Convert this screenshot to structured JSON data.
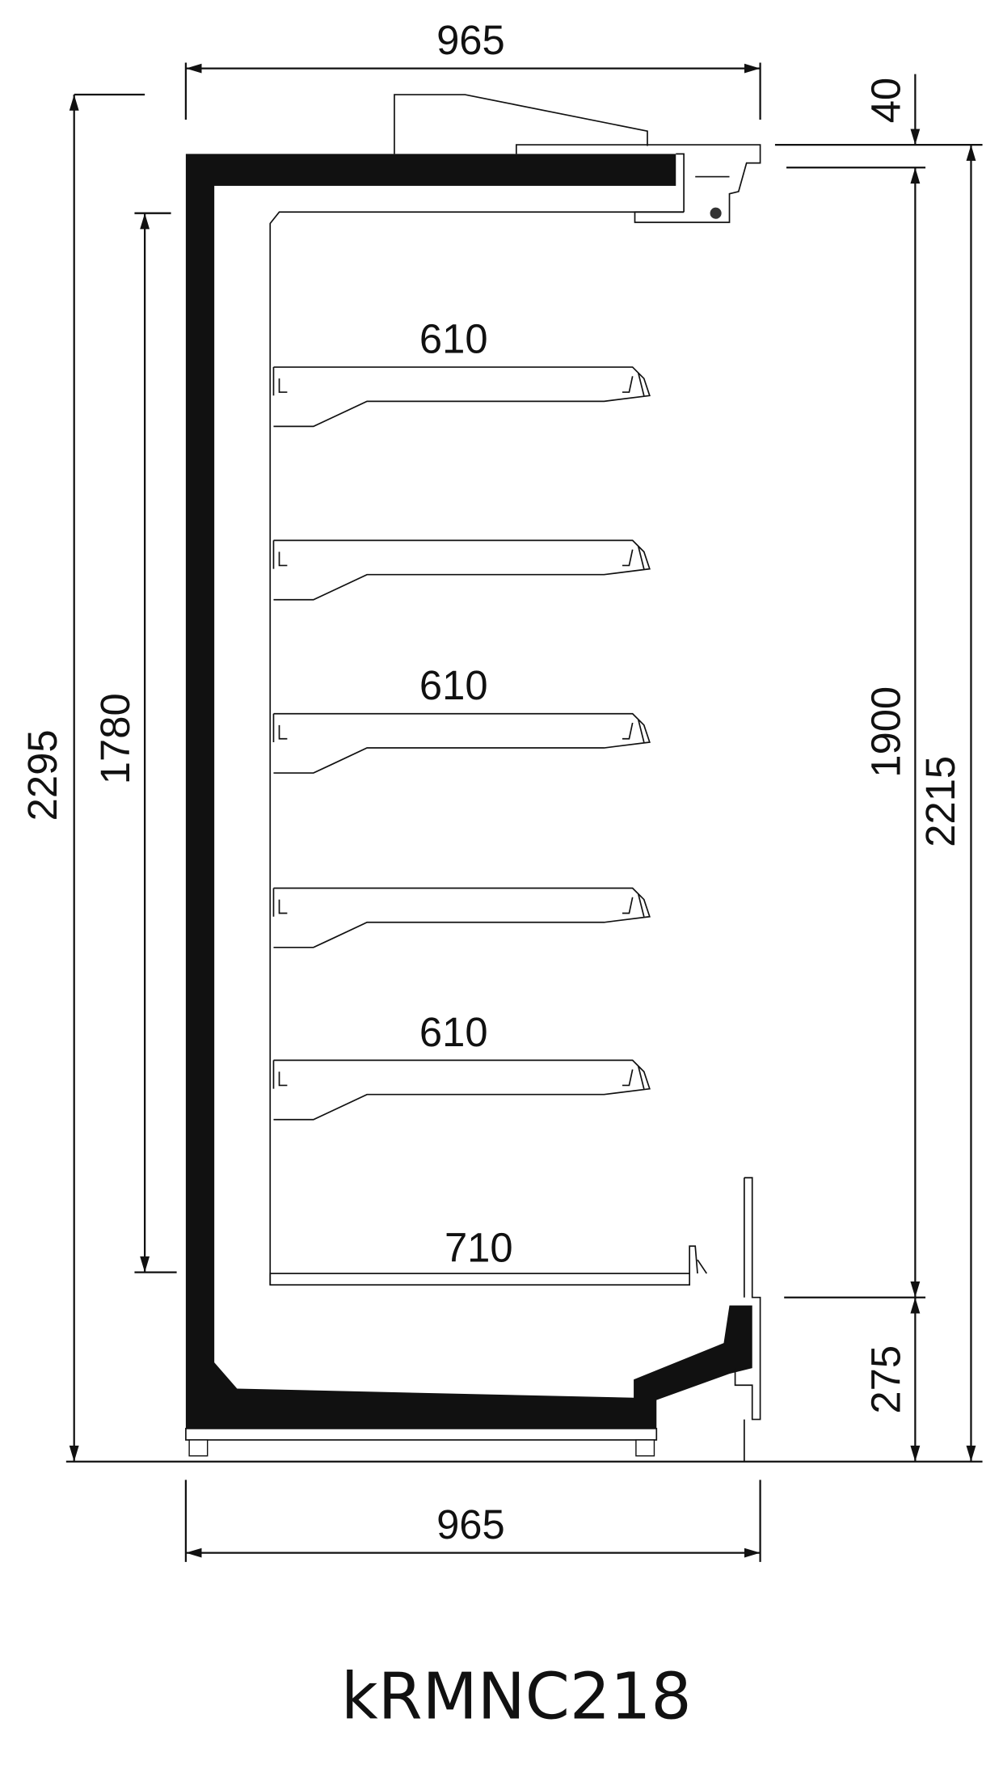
{
  "dimensions": {
    "top_width": "965",
    "canopy": "40",
    "total_height": "2295",
    "display_height": "1780",
    "front_height": "1900",
    "height_2215": "2215",
    "bottom_front": "275",
    "bottom_width": "965"
  },
  "shelves": [
    "610",
    "610",
    "610"
  ],
  "base_shelf": "710",
  "caption": "kRMNC218"
}
